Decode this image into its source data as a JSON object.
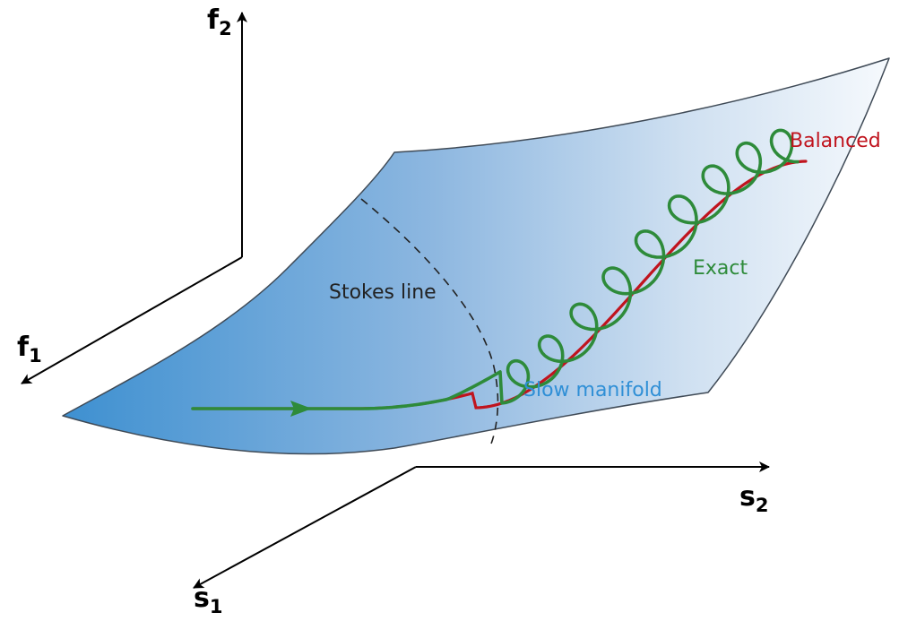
{
  "axes": {
    "f2": {
      "base": "f",
      "sub": "2"
    },
    "f1": {
      "base": "f",
      "sub": "1"
    },
    "s2": {
      "base": "s",
      "sub": "2"
    },
    "s1": {
      "base": "s",
      "sub": "1"
    }
  },
  "labels": {
    "balanced": "Balanced",
    "exact": "Exact",
    "stokes_line": "Stokes line",
    "slow_manifold": "Slow manifold"
  },
  "colors": {
    "balanced": "#c0141e",
    "exact": "#2e8b3a",
    "slow_manifold": "#2f8fd6",
    "stokes_line": "#222222",
    "axis": "#000000",
    "surface_dark": "#3c8fd0",
    "surface_light": "#f7fafd"
  }
}
